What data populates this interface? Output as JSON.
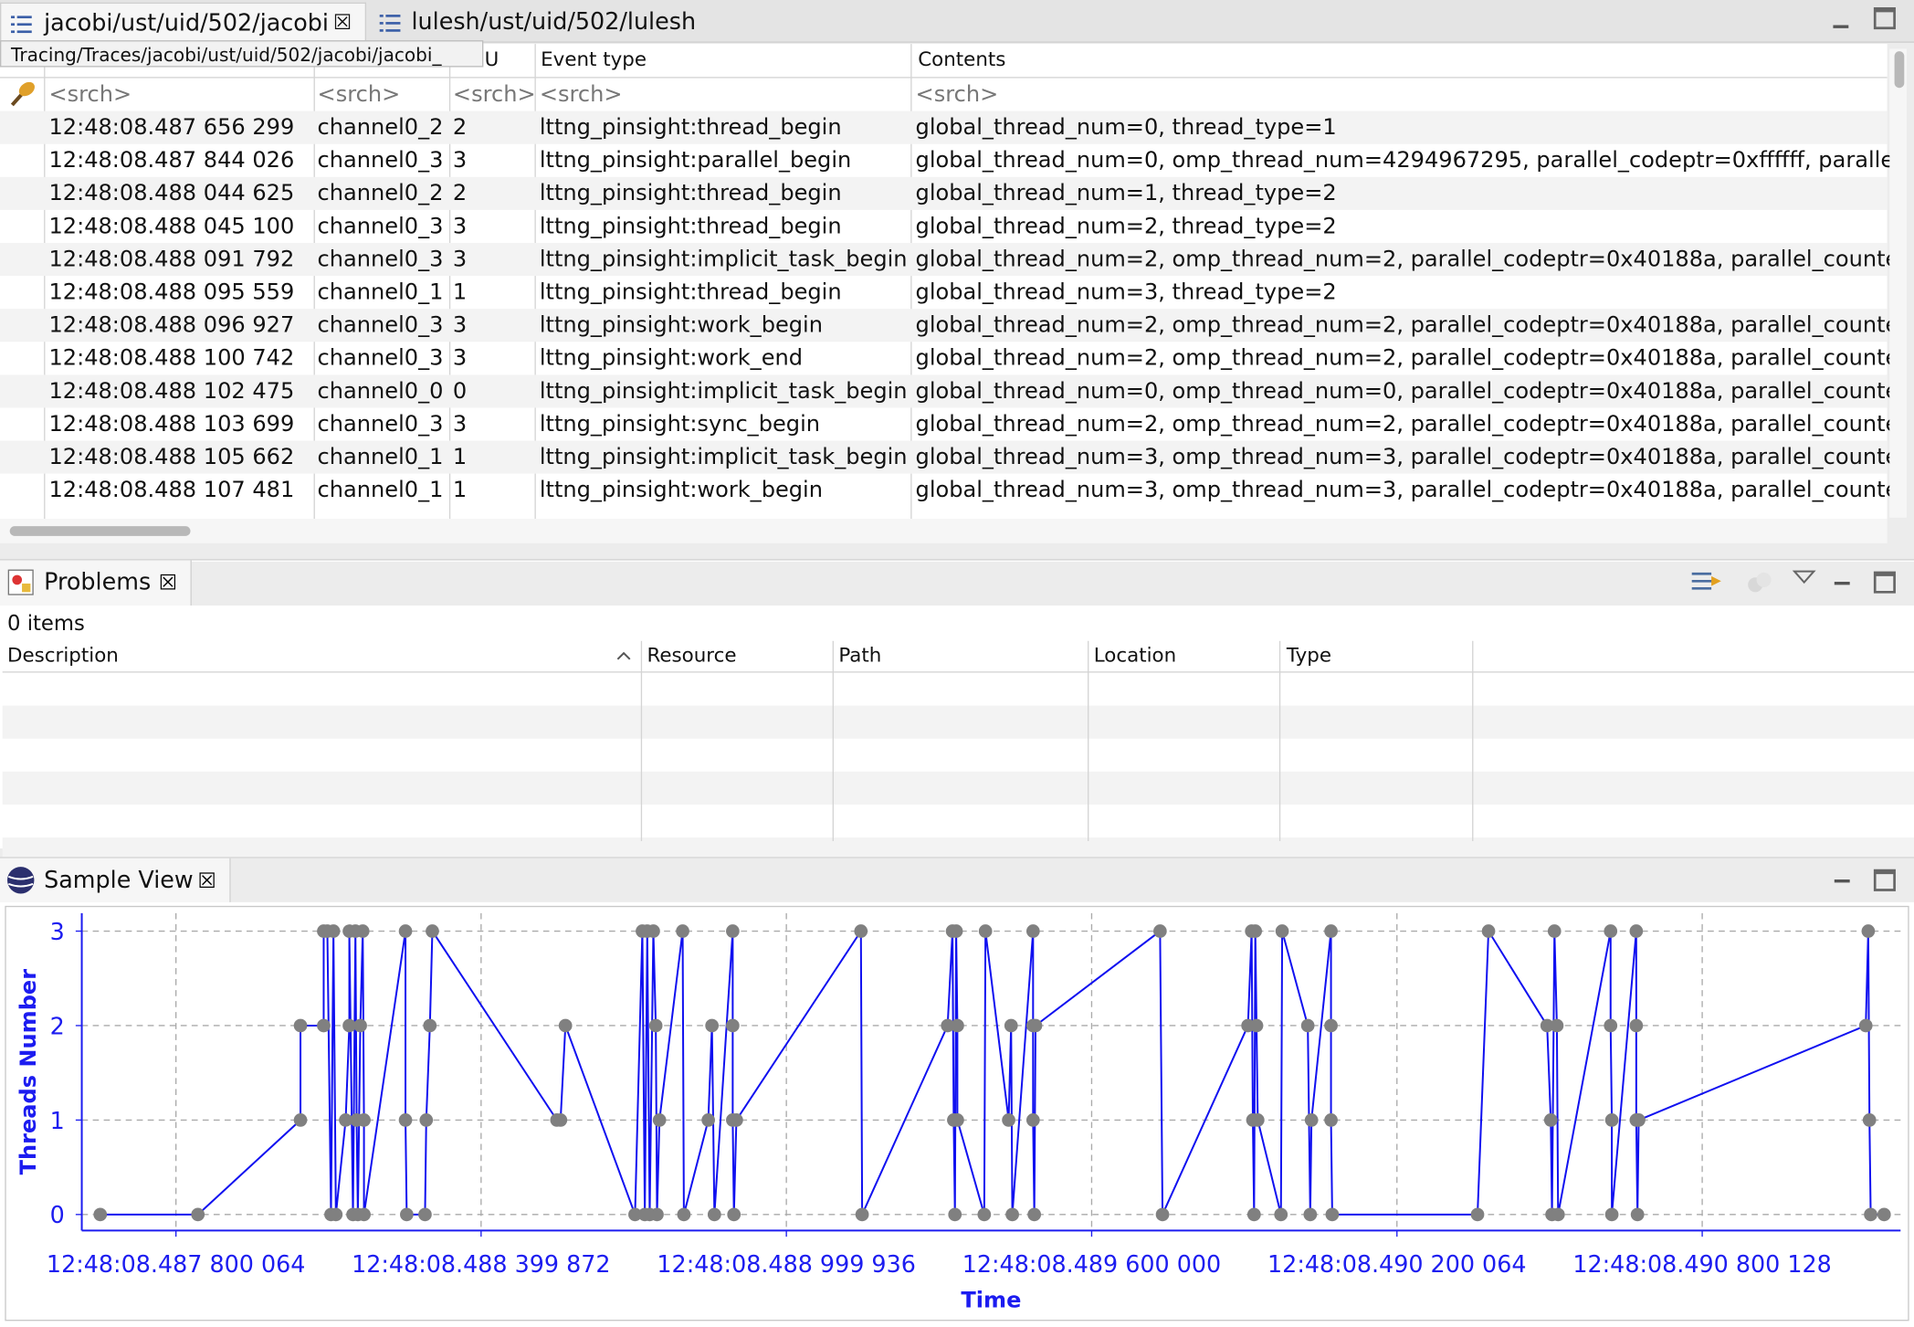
{
  "tabs": [
    "jacobi/ust/uid/502/jacobi",
    "lulesh/ust/uid/502/lulesh"
  ],
  "tooltip": "Tracing/Traces/jacobi/ust/uid/502/jacobi/jacobi_",
  "events_table": {
    "columns": [
      "U",
      "Event type",
      "Contents"
    ],
    "search": [
      "<srch>",
      "<srch>",
      "<srch>",
      "<srch>",
      "<srch>"
    ],
    "rows": [
      [
        "12:48:08.487 656 299",
        "channel0_2",
        "2",
        "lttng_pinsight:thread_begin",
        "global_thread_num=0, thread_type=1"
      ],
      [
        "12:48:08.487 844 026",
        "channel0_3",
        "3",
        "lttng_pinsight:parallel_begin",
        "global_thread_num=0, omp_thread_num=4294967295, parallel_codeptr=0xffffff, paralle"
      ],
      [
        "12:48:08.488 044 625",
        "channel0_2",
        "2",
        "lttng_pinsight:thread_begin",
        "global_thread_num=1, thread_type=2"
      ],
      [
        "12:48:08.488 045 100",
        "channel0_3",
        "3",
        "lttng_pinsight:thread_begin",
        "global_thread_num=2, thread_type=2"
      ],
      [
        "12:48:08.488 091 792",
        "channel0_3",
        "3",
        "lttng_pinsight:implicit_task_begin",
        "global_thread_num=2, omp_thread_num=2, parallel_codeptr=0x40188a, parallel_counte"
      ],
      [
        "12:48:08.488 095 559",
        "channel0_1",
        "1",
        "lttng_pinsight:thread_begin",
        "global_thread_num=3, thread_type=2"
      ],
      [
        "12:48:08.488 096 927",
        "channel0_3",
        "3",
        "lttng_pinsight:work_begin",
        "global_thread_num=2, omp_thread_num=2, parallel_codeptr=0x40188a, parallel_counte"
      ],
      [
        "12:48:08.488 100 742",
        "channel0_3",
        "3",
        "lttng_pinsight:work_end",
        "global_thread_num=2, omp_thread_num=2, parallel_codeptr=0x40188a, parallel_counte"
      ],
      [
        "12:48:08.488 102 475",
        "channel0_0",
        "0",
        "lttng_pinsight:implicit_task_begin",
        "global_thread_num=0, omp_thread_num=0, parallel_codeptr=0x40188a, parallel_counte"
      ],
      [
        "12:48:08.488 103 699",
        "channel0_3",
        "3",
        "lttng_pinsight:sync_begin",
        "global_thread_num=2, omp_thread_num=2, parallel_codeptr=0x40188a, parallel_counte"
      ],
      [
        "12:48:08.488 105 662",
        "channel0_1",
        "1",
        "lttng_pinsight:implicit_task_begin",
        "global_thread_num=3, omp_thread_num=3, parallel_codeptr=0x40188a, parallel_counte"
      ],
      [
        "12:48:08.488 107 481",
        "channel0_1",
        "1",
        "lttng_pinsight:work_begin",
        "global_thread_num=3, omp_thread_num=3, parallel_codeptr=0x40188a, parallel_counte"
      ]
    ]
  },
  "problems": {
    "title": "Problems",
    "count": "0 items",
    "columns": [
      "Description",
      "Resource",
      "Path",
      "Location",
      "Type"
    ]
  },
  "sample_view": {
    "title": "Sample View"
  },
  "chart_data": {
    "type": "line",
    "x_label": "Time",
    "y_label": "Threads Number",
    "grid": true,
    "axis_color": "#1c1cf0",
    "marker_color": "#808080",
    "xlim": [
      487615000,
      491190000
    ],
    "ylim": [
      -0.17,
      3.19
    ],
    "xticks": [
      {
        "value": 487800064,
        "label": "12:48:08.487 800 064"
      },
      {
        "value": 488399872,
        "label": "12:48:08.488 399 872"
      },
      {
        "value": 488999936,
        "label": "12:48:08.488 999 936"
      },
      {
        "value": 489600000,
        "label": "12:48:08.489 600 000"
      },
      {
        "value": 490200064,
        "label": "12:48:08.490 200 064"
      },
      {
        "value": 490800128,
        "label": "12:48:08.490 800 128"
      }
    ],
    "yticks": [
      0,
      1,
      2,
      3
    ],
    "x": [
      487651264,
      487843264,
      488044864,
      488044864,
      488090464,
      488090464,
      488097664,
      488104864,
      488109664,
      488114464,
      488133664,
      488140864,
      488140864,
      488148064,
      488152864,
      488155264,
      488157664,
      488162464,
      488167264,
      488169664,
      488169664,
      488251264,
      488251264,
      488253664,
      488289664,
      488292064,
      488299264,
      488304064,
      488548864,
      488556064,
      488565664,
      488702464,
      488716864,
      488721664,
      488726464,
      488731264,
      488738464,
      488743264,
      488745664,
      488750464,
      488796064,
      488798464,
      488846464,
      488853664,
      488858464,
      488894464,
      488894464,
      488894464,
      488896864,
      488901664,
      489146464,
      489148864,
      489316864,
      489326464,
      489328864,
      489331264,
      489333664,
      489336064,
      489336064,
      489388864,
      489391264,
      489436864,
      489441664,
      489444064,
      489484864,
      489484864,
      489484864,
      489487264,
      489489664,
      489734464,
      489739264,
      489907264,
      489914464,
      489916864,
      489919264,
      489921664,
      489924064,
      489926464,
      489972064,
      489974464,
      490024864,
      490029664,
      490032064,
      490070464,
      490070464,
      490070464,
      490072864,
      490358464,
      490380064,
      490495264,
      490502464,
      490504864,
      490509664,
      490514464,
      490516864,
      490620064,
      490620064,
      490622464,
      490622464,
      490670464,
      490670464,
      490670464,
      490672864,
      490675264,
      491121664,
      491126464,
      491128864,
      491131264,
      491157664
    ],
    "series": [
      {
        "color": "#1010f0",
        "values": [
          0,
          0,
          1,
          2,
          2,
          3,
          3,
          0,
          3,
          0,
          1,
          2,
          3,
          0,
          3,
          1,
          0,
          2,
          3,
          1,
          0,
          3,
          1,
          0,
          0,
          1,
          2,
          3,
          1,
          1,
          2,
          0,
          3,
          0,
          3,
          0,
          3,
          2,
          0,
          1,
          3,
          0,
          1,
          2,
          0,
          3,
          2,
          1,
          0,
          1,
          3,
          0,
          2,
          3,
          1,
          0,
          3,
          2,
          1,
          0,
          3,
          1,
          2,
          0,
          3,
          2,
          1,
          0,
          2,
          3,
          0,
          2,
          3,
          1,
          0,
          3,
          2,
          1,
          0,
          3,
          2,
          0,
          1,
          3,
          2,
          1,
          0,
          0,
          3,
          2,
          1,
          0,
          3,
          2,
          0,
          3,
          2,
          1,
          0,
          3,
          2,
          1,
          0,
          1,
          2,
          3,
          1,
          0,
          0
        ]
      }
    ]
  }
}
